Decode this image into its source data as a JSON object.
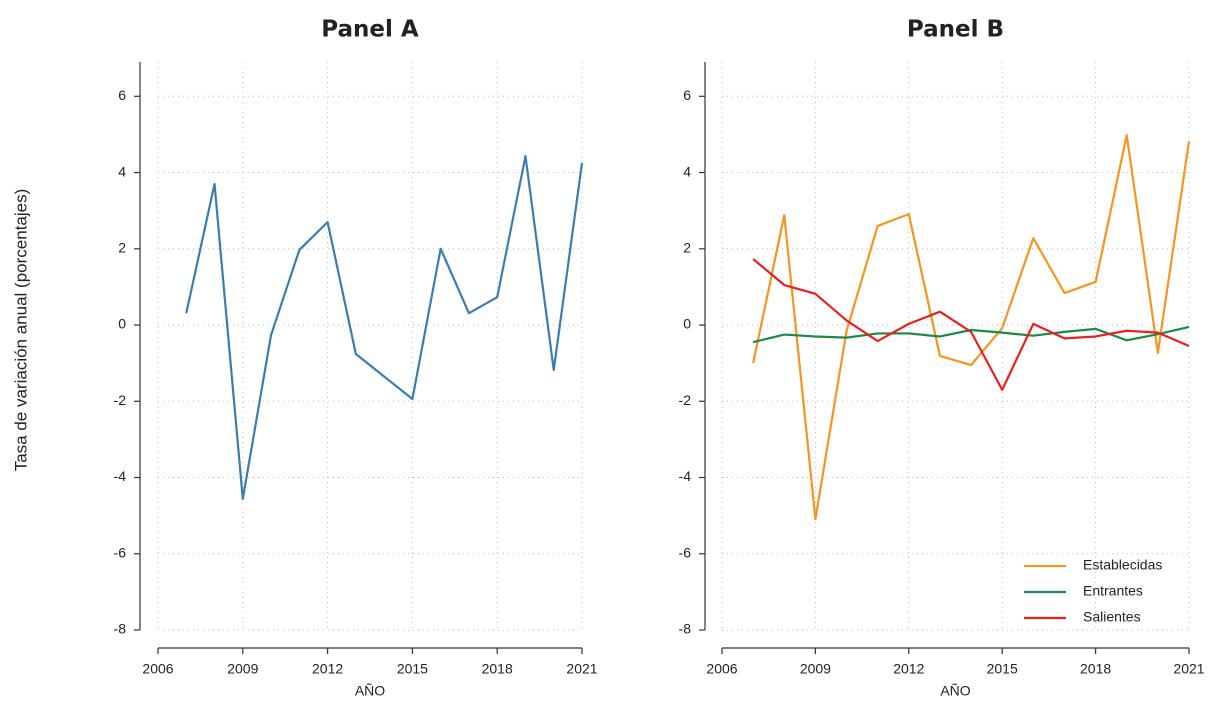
{
  "chart_data": [
    {
      "type": "line",
      "title": "Panel A",
      "ylabel": "Tasa de variación anual (porcentajes)",
      "xlabel": "AÑO",
      "x": [
        2007,
        2008,
        2009,
        2010,
        2011,
        2012,
        2013,
        2014,
        2015,
        2016,
        2017,
        2018,
        2019,
        2020,
        2021
      ],
      "series": [
        {
          "color": "#3a7dae",
          "values": [
            0.31,
            3.7,
            -4.56,
            -0.26,
            1.97,
            2.7,
            -0.76,
            -1.35,
            -1.94,
            2.0,
            0.31,
            0.73,
            4.43,
            -1.18,
            4.25
          ]
        }
      ],
      "xlim": [
        2006,
        2021
      ],
      "xticks": [
        2006,
        2009,
        2012,
        2015,
        2018,
        2021
      ],
      "ylim": [
        -8,
        6.9
      ],
      "yticks": [
        -8,
        -6,
        -4,
        -2,
        0,
        2,
        4,
        6
      ],
      "grid": true
    },
    {
      "type": "line",
      "title": "Panel B",
      "xlabel": "AÑO",
      "x": [
        2007,
        2008,
        2009,
        2010,
        2011,
        2012,
        2013,
        2014,
        2015,
        2016,
        2017,
        2018,
        2019,
        2020,
        2021
      ],
      "series": [
        {
          "name": "Establecidas",
          "color": "#f7941d",
          "values": [
            -1.0,
            2.88,
            -5.09,
            -0.16,
            2.6,
            2.91,
            -0.81,
            -1.05,
            -0.08,
            2.28,
            0.84,
            1.13,
            4.98,
            -0.73,
            4.82
          ]
        },
        {
          "name": "Entrantes",
          "color": "#1a8a45",
          "values": [
            -0.45,
            -0.25,
            -0.3,
            -0.33,
            -0.22,
            -0.22,
            -0.3,
            -0.13,
            -0.2,
            -0.28,
            -0.18,
            -0.1,
            -0.4,
            -0.24,
            -0.05
          ]
        },
        {
          "name": "Salientes",
          "color": "#e82020",
          "values": [
            1.73,
            1.05,
            0.82,
            0.12,
            -0.42,
            0.03,
            0.35,
            -0.18,
            -1.7,
            0.03,
            -0.35,
            -0.3,
            -0.15,
            -0.2,
            -0.55
          ]
        }
      ],
      "xlim": [
        2006,
        2021
      ],
      "xticks": [
        2006,
        2009,
        2012,
        2015,
        2018,
        2021
      ],
      "ylim": [
        -8,
        6.9
      ],
      "yticks": [
        -8,
        -6,
        -4,
        -2,
        0,
        2,
        4,
        6
      ],
      "grid": true,
      "legend": "lower right"
    }
  ]
}
